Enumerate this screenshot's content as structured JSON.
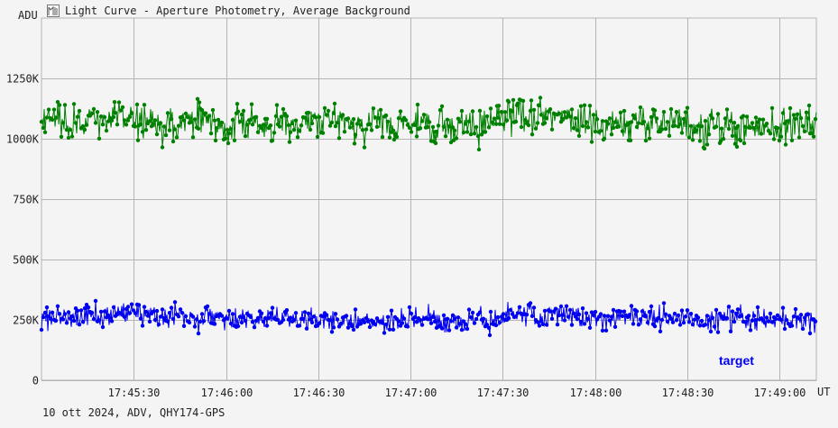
{
  "window": {
    "title": "Light Curve - Aperture Photometry, Average Background",
    "icon": "light-curve-icon"
  },
  "footer": {
    "text": "10 ott 2024, ADV, QHY174-GPS"
  },
  "colors": {
    "background": "#f4f4f4",
    "grid": "#b4b4b4",
    "target": "#0000ee",
    "background_series": "#008000"
  },
  "chart_data": {
    "type": "line",
    "ylabel": "ADU",
    "xlabel": "UT",
    "y_ticks": [
      "0",
      "250K",
      "500K",
      "750K",
      "1000K",
      "1250K"
    ],
    "y_tick_values": [
      0,
      250000,
      500000,
      750000,
      1000000,
      1250000
    ],
    "x_ticks": [
      "17:45:30",
      "17:46:00",
      "17:46:30",
      "17:47:00",
      "17:47:30",
      "17:48:00",
      "17:48:30",
      "17:49:00"
    ],
    "x_range": [
      "17:45:00",
      "17:49:12"
    ],
    "ylim": [
      0,
      1500000
    ],
    "grid": true,
    "series": [
      {
        "name": "",
        "role": "average background",
        "color": "#008000",
        "mean": 1065000,
        "stdev": 60000,
        "min": 855000,
        "max": 1300000
      },
      {
        "name": "target",
        "color": "#0000ee",
        "mean": 260000,
        "stdev": 40000,
        "min": 140000,
        "max": 385000
      }
    ]
  }
}
